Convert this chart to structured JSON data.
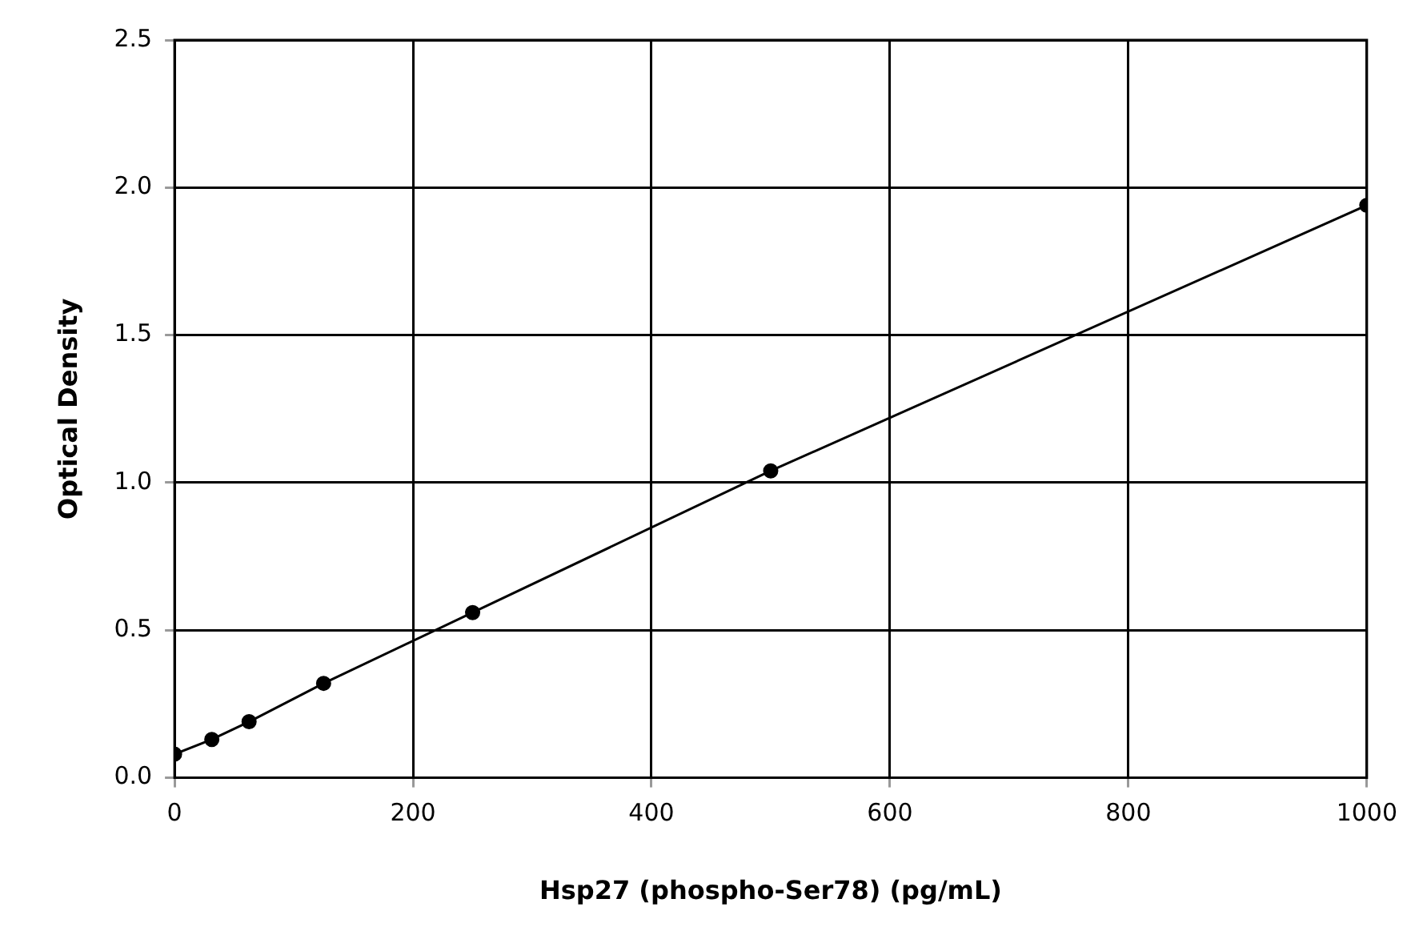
{
  "chart_data": {
    "type": "line",
    "xlabel": "Hsp27 (phospho-Ser78) (pg/mL)",
    "ylabel": "Optical Density",
    "x": [
      0,
      31.25,
      62.5,
      125,
      250,
      500,
      1000
    ],
    "series": [
      {
        "color": "#000000",
        "values": [
          0.08,
          0.13,
          0.19,
          0.32,
          0.56,
          1.04,
          1.94
        ]
      }
    ],
    "xlim": [
      0,
      1000
    ],
    "xticks": [
      0,
      200,
      400,
      600,
      800,
      1000
    ],
    "ylim": [
      0,
      2.5
    ],
    "yticks": [
      {
        "value": 0,
        "label": "0.0"
      },
      {
        "value": 0.5,
        "label": "0.5"
      },
      {
        "value": 1,
        "label": "1.0"
      },
      {
        "value": 1.5,
        "label": "1.5"
      },
      {
        "value": 2,
        "label": "2.0"
      },
      {
        "value": 2.5,
        "label": "2.5"
      }
    ],
    "grid": true,
    "legend": false,
    "marker": "circle",
    "line_style": "solid"
  }
}
